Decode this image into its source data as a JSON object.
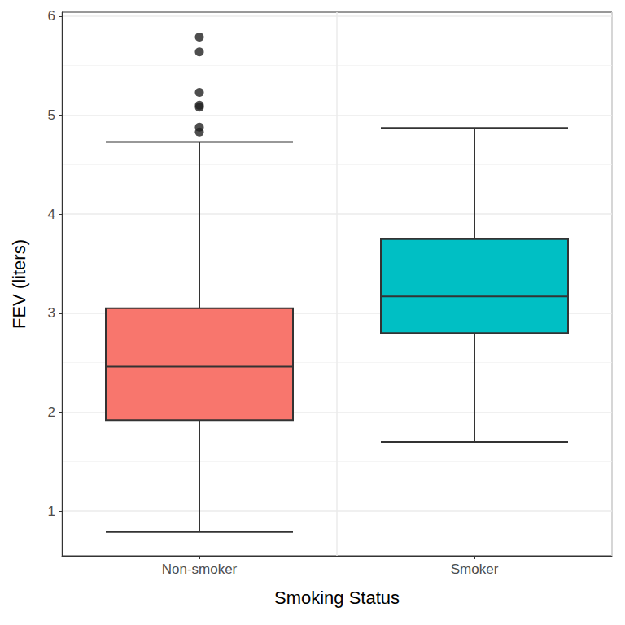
{
  "chart_data": {
    "type": "boxplot",
    "x_label": "Smoking Status",
    "y_label": "FEV (liters)",
    "categories": [
      "Non-smoker",
      "Smoker"
    ],
    "values": [
      [
        0.79,
        1.92,
        2.46,
        3.05,
        4.73
      ],
      [
        1.7,
        2.8,
        3.17,
        3.75,
        4.87
      ]
    ],
    "outliers": [
      [
        5.79,
        5.64,
        5.23,
        5.1,
        5.08,
        4.88,
        4.83
      ],
      []
    ],
    "colors": [
      "#F8766D",
      "#00BFC4"
    ],
    "ylim": [
      0.55,
      6.04
    ],
    "yticks": [
      1,
      2,
      3,
      4,
      5,
      6
    ],
    "grid": true
  }
}
